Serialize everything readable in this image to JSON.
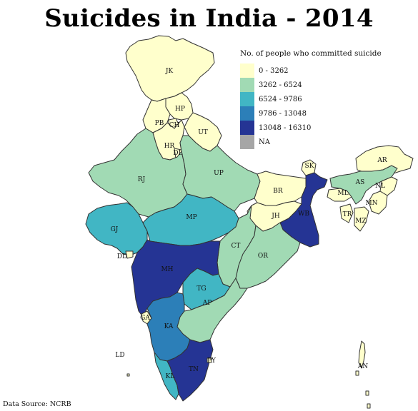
{
  "title": "Suicides in India - 2014",
  "legend": {
    "title": "No. of people who committed suicide",
    "items": [
      {
        "label": "0 - 3262",
        "color": "#ffffcc"
      },
      {
        "label": "3262 - 6524",
        "color": "#a1dab4"
      },
      {
        "label": "6524 - 9786",
        "color": "#41b6c4"
      },
      {
        "label": "9786 - 13048",
        "color": "#2c7fb8"
      },
      {
        "label": "13048 - 16310",
        "color": "#253494"
      },
      {
        "label": "NA",
        "color": "#a6a6a6"
      }
    ]
  },
  "source": "Data Source: NCRB",
  "states": [
    {
      "code": "JK",
      "bin": 0
    },
    {
      "code": "HP",
      "bin": 0
    },
    {
      "code": "PB",
      "bin": 0
    },
    {
      "code": "CH",
      "bin": 0
    },
    {
      "code": "UT",
      "bin": 0
    },
    {
      "code": "HR",
      "bin": 0
    },
    {
      "code": "DL",
      "bin": 0
    },
    {
      "code": "RJ",
      "bin": 1
    },
    {
      "code": "UP",
      "bin": 1
    },
    {
      "code": "BR",
      "bin": 0
    },
    {
      "code": "SK",
      "bin": 0
    },
    {
      "code": "AR",
      "bin": 0
    },
    {
      "code": "AS",
      "bin": 1
    },
    {
      "code": "NL",
      "bin": 0
    },
    {
      "code": "ML",
      "bin": 0
    },
    {
      "code": "MN",
      "bin": 0
    },
    {
      "code": "TR",
      "bin": 0
    },
    {
      "code": "MZ",
      "bin": 0
    },
    {
      "code": "WB",
      "bin": 4
    },
    {
      "code": "JH",
      "bin": 0
    },
    {
      "code": "GJ",
      "bin": 2
    },
    {
      "code": "MP",
      "bin": 2
    },
    {
      "code": "CT",
      "bin": 1
    },
    {
      "code": "OR",
      "bin": 1
    },
    {
      "code": "DD",
      "bin": 0
    },
    {
      "code": "MH",
      "bin": 4
    },
    {
      "code": "TG",
      "bin": 2
    },
    {
      "code": "AP",
      "bin": 1
    },
    {
      "code": "GA",
      "bin": 0
    },
    {
      "code": "KA",
      "bin": 3
    },
    {
      "code": "KL",
      "bin": 2
    },
    {
      "code": "TN",
      "bin": 4
    },
    {
      "code": "PY",
      "bin": 0
    },
    {
      "code": "LD",
      "bin": 0
    },
    {
      "code": "AN",
      "bin": 0
    }
  ]
}
